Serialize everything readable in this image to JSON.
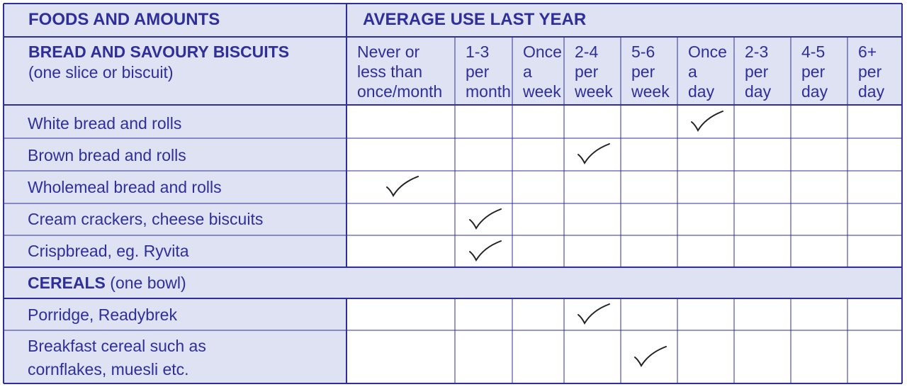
{
  "header": {
    "foods_label": "FOODS AND AMOUNTS",
    "use_label": "AVERAGE USE LAST YEAR"
  },
  "frequency_columns": [
    [
      "Never or",
      "less than",
      "once/month"
    ],
    [
      "1-3",
      "per",
      "month"
    ],
    [
      "Once",
      "a",
      "week"
    ],
    [
      "2-4",
      "per",
      "week"
    ],
    [
      "5-6",
      "per",
      "week"
    ],
    [
      "Once",
      "a",
      "day"
    ],
    [
      "2-3",
      "per",
      "day"
    ],
    [
      "4-5",
      "per",
      "day"
    ],
    [
      "6+",
      "per",
      "day"
    ]
  ],
  "sections": [
    {
      "title": "BREAD AND SAVOURY BISCUITS",
      "note": "(one slice or biscuit)",
      "rows": [
        {
          "label": "White bread and rolls",
          "checked": "Once a day"
        },
        {
          "label": "Brown bread and rolls",
          "checked": "2-4 per week"
        },
        {
          "label": "Wholemeal bread and rolls",
          "checked": "Never or less than once/month"
        },
        {
          "label": "Cream crackers, cheese biscuits",
          "checked": "1-3 per month"
        },
        {
          "label": "Crispbread, eg. Ryvita",
          "checked": "1-3 per month"
        }
      ]
    },
    {
      "title": "CEREALS",
      "note": "(one bowl)",
      "rows": [
        {
          "label": "Porridge, Readybrek",
          "checked": "2-4 per week"
        },
        {
          "label": "Breakfast cereal such as",
          "label2": "cornflakes, muesli etc.",
          "checked": "5-6 per week"
        }
      ]
    }
  ],
  "colors": {
    "ink": "#2f2f9c",
    "panel": "#dfe2f2",
    "box": "#ffffff",
    "check": "#222222"
  }
}
